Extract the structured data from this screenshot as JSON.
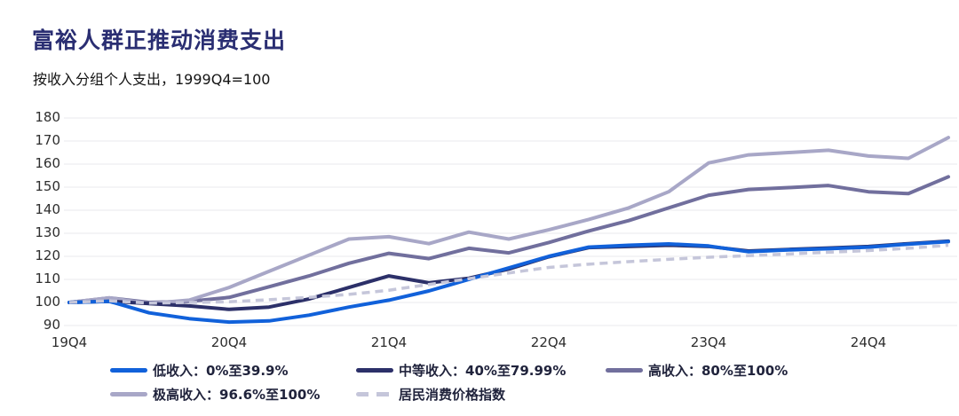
{
  "chart_data": {
    "type": "line",
    "title": "富裕人群正推动消费支出",
    "subtitle": "按收入分组个人支出，1999Q4=100",
    "x": [
      "19Q4",
      "20Q1",
      "20Q2",
      "20Q3",
      "20Q4",
      "21Q1",
      "21Q2",
      "21Q3",
      "21Q4",
      "22Q1",
      "22Q2",
      "22Q3",
      "22Q4",
      "23Q1",
      "23Q2",
      "23Q3",
      "23Q4",
      "24Q1",
      "24Q2",
      "24Q3",
      "24Q4",
      "25Q1",
      "25Q2"
    ],
    "x_tick_labels": [
      "19Q4",
      "20Q4",
      "21Q4",
      "22Q4",
      "23Q4",
      "24Q4"
    ],
    "x_tick_positions": [
      0,
      4,
      8,
      12,
      16,
      20
    ],
    "ylim": [
      90,
      180
    ],
    "y_ticks": [
      90,
      100,
      110,
      120,
      130,
      140,
      150,
      160,
      170,
      180
    ],
    "grid": "horizontal-only",
    "legend_position": "bottom",
    "gridline_color": "#e9e9ed",
    "series": [
      {
        "id": "low-income",
        "name": "低收入：0%至39.9%",
        "color": "#1161da",
        "line_style": "solid",
        "values": [
          100,
          100.5,
          95.5,
          93,
          91.5,
          92,
          94.5,
          98,
          101,
          105,
          110,
          115,
          120,
          124,
          124.8,
          125.4,
          124.5,
          122,
          122.8,
          123.3,
          124,
          125.3,
          126.4
        ]
      },
      {
        "id": "middle-income",
        "name": "中等收入：40%至79.99%",
        "color": "#2c3069",
        "line_style": "solid",
        "values": [
          100,
          100.5,
          99.5,
          98.5,
          97,
          98,
          101.5,
          106.5,
          111.5,
          108.5,
          110.5,
          114.5,
          119.8,
          123.8,
          124.3,
          124.8,
          124.3,
          122.3,
          123,
          123.6,
          124.3,
          125.5,
          126.6
        ]
      },
      {
        "id": "high-income",
        "name": "高收入：80%至100%",
        "color": "#716f9d",
        "line_style": "solid",
        "values": [
          100,
          102,
          100,
          100.5,
          102.2,
          106.8,
          111.5,
          117,
          121.3,
          119,
          123.5,
          121.5,
          126,
          131,
          135.5,
          141,
          146.5,
          149,
          149.8,
          150.7,
          148,
          147.2,
          154.5
        ]
      },
      {
        "id": "very-high-income",
        "name": "极高收入：96.6%至100%",
        "color": "#a8a7c7",
        "line_style": "solid",
        "values": [
          100,
          102,
          99.5,
          101,
          106.5,
          113.5,
          120.5,
          127.5,
          128.5,
          125.5,
          130.5,
          127.5,
          131.5,
          136,
          141,
          148,
          160.5,
          164,
          165,
          166,
          163.5,
          162.5,
          171.5
        ]
      },
      {
        "id": "cpi",
        "name": "居民消费价格指数",
        "color": "#c5c6da",
        "line_style": "dashed",
        "values": [
          100,
          100.7,
          99.7,
          100,
          100.3,
          101.2,
          102.2,
          103.5,
          105.3,
          107.8,
          110.3,
          112.8,
          115.2,
          116.6,
          117.7,
          118.7,
          119.6,
          120.3,
          121,
          121.8,
          122.5,
          123.5,
          124.8
        ]
      }
    ]
  }
}
